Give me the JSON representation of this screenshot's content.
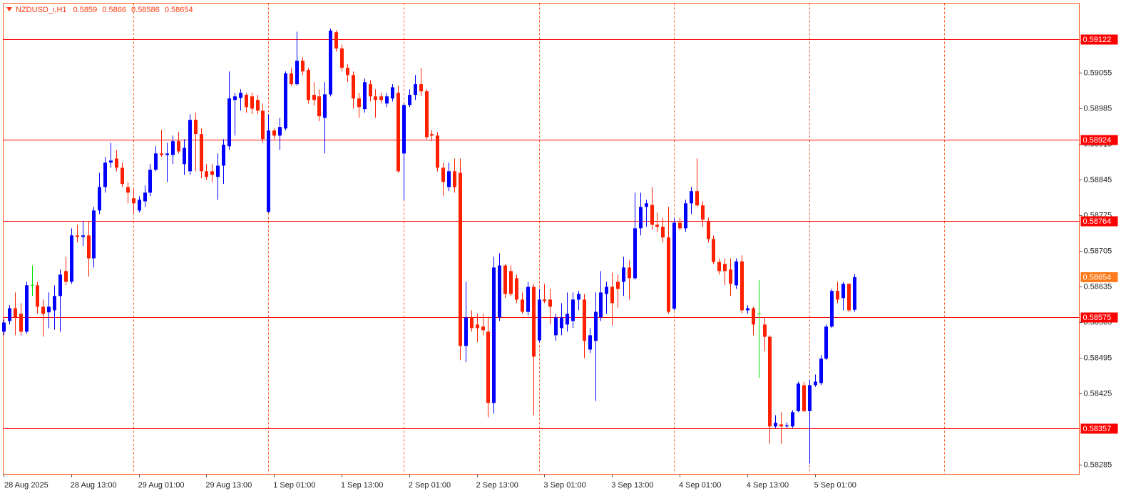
{
  "chart_data": {
    "type": "candlestick",
    "title": "NZDUSD_i,H1",
    "up_color": "#0000ff",
    "down_color": "#ff2000",
    "doji_color": "#00e000",
    "level_color": "#ff0000",
    "current_price_color": "#ff7a1a",
    "ylim": [
      0.58267,
      0.59192
    ],
    "yticks": [
      0.58285,
      0.58425,
      0.58495,
      0.58565,
      0.58635,
      0.58705,
      0.58775,
      0.58845,
      0.58915,
      0.58985,
      0.59055
    ],
    "levels": [
      0.59122,
      0.58924,
      0.58764,
      0.58575,
      0.58357
    ],
    "categories": [
      "28 Aug 2025",
      null,
      null,
      null,
      null,
      null,
      null,
      null,
      null,
      null,
      null,
      null,
      "28 Aug 13:00",
      null,
      null,
      null,
      null,
      null,
      null,
      null,
      null,
      null,
      null,
      null,
      "29 Aug 01:00",
      null,
      null,
      null,
      null,
      null,
      null,
      null,
      null,
      null,
      null,
      null,
      "29 Aug 13:00",
      null,
      null,
      null,
      null,
      null,
      null,
      null,
      null,
      null,
      null,
      null,
      "1 Sep 01:00",
      null,
      null,
      null,
      null,
      null,
      null,
      null,
      null,
      null,
      null,
      null,
      "1 Sep 13:00",
      null,
      null,
      null,
      null,
      null,
      null,
      null,
      null,
      null,
      null,
      null,
      "2 Sep 01:00",
      null,
      null,
      null,
      null,
      null,
      null,
      null,
      null,
      null,
      null,
      null,
      "2 Sep 13:00",
      null,
      null,
      null,
      null,
      null,
      null,
      null,
      null,
      null,
      null,
      null,
      "3 Sep 01:00",
      null,
      null,
      null,
      null,
      null,
      null,
      null,
      null,
      null,
      null,
      null,
      "3 Sep 13:00",
      null,
      null,
      null,
      null,
      null,
      null,
      null,
      null,
      null,
      null,
      null,
      "4 Sep 01:00",
      null,
      null,
      null,
      null,
      null,
      null,
      null,
      null,
      null,
      null,
      null,
      "4 Sep 13:00",
      null,
      null,
      null,
      null,
      null,
      null,
      null,
      null,
      null,
      null,
      null,
      "5 Sep 01:00",
      null,
      null,
      null,
      null,
      null,
      null,
      null
    ],
    "candles": [
      [
        0.58547,
        0.58571,
        0.5854,
        0.58565
      ],
      [
        0.58568,
        0.58599,
        0.58561,
        0.58593
      ],
      [
        0.58593,
        0.58624,
        0.5854,
        0.58575
      ],
      [
        0.58582,
        0.58603,
        0.5854,
        0.58547
      ],
      [
        0.58547,
        0.58645,
        0.58543,
        0.58638
      ],
      [
        0.58638,
        0.58677,
        0.58617,
        0.58638
      ],
      [
        0.58638,
        0.58645,
        0.58582,
        0.58596
      ],
      [
        0.58596,
        0.5861,
        0.58537,
        0.58582
      ],
      [
        0.58585,
        0.58624,
        0.58554,
        0.58596
      ],
      [
        0.58589,
        0.58638,
        0.58551,
        0.58617
      ],
      [
        0.58617,
        0.58669,
        0.58547,
        0.58659
      ],
      [
        0.58666,
        0.58694,
        0.58638,
        0.58645
      ],
      [
        0.58645,
        0.5875,
        0.58641,
        0.58736
      ],
      [
        0.58736,
        0.58757,
        0.58722,
        0.58733
      ],
      [
        0.58733,
        0.58764,
        0.58715,
        0.58736
      ],
      [
        0.58736,
        0.58764,
        0.58655,
        0.58691
      ],
      [
        0.58691,
        0.58792,
        0.58673,
        0.58785
      ],
      [
        0.58785,
        0.58859,
        0.58778,
        0.58831
      ],
      [
        0.58831,
        0.5889,
        0.5882,
        0.58879
      ],
      [
        0.58879,
        0.58918,
        0.58869,
        0.58883
      ],
      [
        0.58887,
        0.58904,
        0.58862,
        0.58869
      ],
      [
        0.58869,
        0.58879,
        0.58831,
        0.58837
      ],
      [
        0.58831,
        0.58841,
        0.58799,
        0.5882
      ],
      [
        0.58809,
        0.58827,
        0.58778,
        0.58799
      ],
      [
        0.58785,
        0.58813,
        0.58781,
        0.58806
      ],
      [
        0.58803,
        0.58834,
        0.58792,
        0.5882
      ],
      [
        0.5882,
        0.58876,
        0.58813,
        0.58865
      ],
      [
        0.58865,
        0.58911,
        0.58862,
        0.58897
      ],
      [
        0.58897,
        0.58943,
        0.5889,
        0.58894
      ],
      [
        0.58894,
        0.58918,
        0.58841,
        0.58897
      ],
      [
        0.58894,
        0.58932,
        0.58876,
        0.58921
      ],
      [
        0.58921,
        0.58939,
        0.58897,
        0.58901
      ],
      [
        0.58876,
        0.58925,
        0.58855,
        0.58908
      ],
      [
        0.58862,
        0.58974,
        0.58855,
        0.58963
      ],
      [
        0.58963,
        0.58977,
        0.58862,
        0.58935
      ],
      [
        0.58935,
        0.58946,
        0.58848,
        0.58862
      ],
      [
        0.58862,
        0.58876,
        0.58845,
        0.58851
      ],
      [
        0.58862,
        0.58876,
        0.58841,
        0.58855
      ],
      [
        0.58851,
        0.58897,
        0.58806,
        0.58873
      ],
      [
        0.58873,
        0.58925,
        0.58837,
        0.58914
      ],
      [
        0.58911,
        0.59058,
        0.58904,
        0.59005
      ],
      [
        0.59002,
        0.59016,
        0.58932,
        0.59009
      ],
      [
        0.59006,
        0.59023,
        0.58981,
        0.59016
      ],
      [
        0.59012,
        0.59016,
        0.58977,
        0.58988
      ],
      [
        0.59009,
        0.59016,
        0.58974,
        0.58985
      ],
      [
        0.59002,
        0.59012,
        0.58974,
        0.58981
      ],
      [
        0.58981,
        0.58995,
        0.58918,
        0.58925
      ],
      [
        0.58782,
        0.58974,
        0.58781,
        0.58942
      ],
      [
        0.58942,
        0.58946,
        0.58925,
        0.58932
      ],
      [
        0.58932,
        0.58967,
        0.58904,
        0.58949
      ],
      [
        0.58946,
        0.59058,
        0.58942,
        0.59054
      ],
      [
        0.59054,
        0.59065,
        0.5903,
        0.59033
      ],
      [
        0.59033,
        0.59136,
        0.5903,
        0.59079
      ],
      [
        0.59079,
        0.59086,
        0.59051,
        0.59058
      ],
      [
        0.59061,
        0.59065,
        0.58995,
        0.59002
      ],
      [
        0.59012,
        0.59037,
        0.58991,
        0.59002
      ],
      [
        0.59009,
        0.59023,
        0.5896,
        0.5897
      ],
      [
        0.58967,
        0.59037,
        0.58897,
        0.59013
      ],
      [
        0.59013,
        0.59142,
        0.59009,
        0.59138
      ],
      [
        0.59135,
        0.59139,
        0.59097,
        0.59103
      ],
      [
        0.59103,
        0.59111,
        0.59058,
        0.59065
      ],
      [
        0.59065,
        0.59072,
        0.59037,
        0.59051
      ],
      [
        0.59051,
        0.59058,
        0.58985,
        0.59005
      ],
      [
        0.59005,
        0.59016,
        0.58967,
        0.58988
      ],
      [
        0.58984,
        0.59044,
        0.58977,
        0.59037
      ],
      [
        0.59033,
        0.59041,
        0.58999,
        0.59009
      ],
      [
        0.59009,
        0.59023,
        0.58967,
        0.59002
      ],
      [
        0.59009,
        0.59016,
        0.58995,
        0.59002
      ],
      [
        0.58995,
        0.59016,
        0.58988,
        0.59009
      ],
      [
        0.59005,
        0.59033,
        0.58999,
        0.59027
      ],
      [
        0.59016,
        0.5903,
        0.58859,
        0.58862
      ],
      [
        0.58897,
        0.58995,
        0.58806,
        0.58992
      ],
      [
        0.58992,
        0.59023,
        0.58988,
        0.59012
      ],
      [
        0.59012,
        0.59051,
        0.59002,
        0.59033
      ],
      [
        0.59033,
        0.59065,
        0.59009,
        0.59019
      ],
      [
        0.59019,
        0.59023,
        0.58925,
        0.58929
      ],
      [
        0.58935,
        0.58943,
        0.58921,
        0.58932
      ],
      [
        0.58932,
        0.58939,
        0.58862,
        0.58869
      ],
      [
        0.58869,
        0.58879,
        0.58813,
        0.58841
      ],
      [
        0.58831,
        0.58879,
        0.58823,
        0.58862
      ],
      [
        0.58862,
        0.58887,
        0.5882,
        0.58831
      ],
      [
        0.58859,
        0.58887,
        0.58491,
        0.58519
      ],
      [
        0.58519,
        0.58645,
        0.58487,
        0.58575
      ],
      [
        0.58575,
        0.58589,
        0.58547,
        0.58554
      ],
      [
        0.58561,
        0.58582,
        0.58526,
        0.58554
      ],
      [
        0.58557,
        0.58582,
        0.5854,
        0.5855
      ],
      [
        0.58547,
        0.58575,
        0.58379,
        0.58407
      ],
      [
        0.58407,
        0.58694,
        0.58386,
        0.58673
      ],
      [
        0.58575,
        0.58701,
        0.58568,
        0.58677
      ],
      [
        0.58677,
        0.5868,
        0.58613,
        0.58621
      ],
      [
        0.58666,
        0.58677,
        0.58617,
        0.58621
      ],
      [
        0.58652,
        0.58659,
        0.58603,
        0.5861
      ],
      [
        0.5861,
        0.58624,
        0.58582,
        0.58586
      ],
      [
        0.58586,
        0.58645,
        0.58579,
        0.58635
      ],
      [
        0.58635,
        0.58641,
        0.58383,
        0.58498
      ],
      [
        0.5853,
        0.58631,
        0.58526,
        0.5861
      ],
      [
        0.5861,
        0.58641,
        0.58603,
        0.58607
      ],
      [
        0.5861,
        0.58631,
        0.58561,
        0.58596
      ],
      [
        0.5854,
        0.58582,
        0.58529,
        0.58575
      ],
      [
        0.58554,
        0.58603,
        0.5854,
        0.58575
      ],
      [
        0.58561,
        0.58624,
        0.58547,
        0.58582
      ],
      [
        0.58568,
        0.58624,
        0.58554,
        0.5861
      ],
      [
        0.5861,
        0.58627,
        0.58589,
        0.58621
      ],
      [
        0.5861,
        0.58621,
        0.58495,
        0.58529
      ],
      [
        0.58512,
        0.58554,
        0.58505,
        0.5854
      ],
      [
        0.58529,
        0.58624,
        0.58411,
        0.58586
      ],
      [
        0.58575,
        0.58666,
        0.58568,
        0.58624
      ],
      [
        0.58621,
        0.58645,
        0.58582,
        0.58635
      ],
      [
        0.58635,
        0.58663,
        0.58559,
        0.58603
      ],
      [
        0.58645,
        0.58659,
        0.58593,
        0.58631
      ],
      [
        0.58645,
        0.58694,
        0.58617,
        0.58673
      ],
      [
        0.58673,
        0.58687,
        0.5861,
        0.58652
      ],
      [
        0.58652,
        0.5882,
        0.58649,
        0.5875
      ],
      [
        0.5875,
        0.5882,
        0.58736,
        0.58792
      ],
      [
        0.58792,
        0.58806,
        0.58753,
        0.58799
      ],
      [
        0.58796,
        0.58831,
        0.58747,
        0.58757
      ],
      [
        0.58757,
        0.58781,
        0.58743,
        0.58753
      ],
      [
        0.58753,
        0.58771,
        0.58722,
        0.58732
      ],
      [
        0.58732,
        0.58792,
        0.58582,
        0.58586
      ],
      [
        0.58592,
        0.58771,
        0.58589,
        0.58761
      ],
      [
        0.58761,
        0.58771,
        0.58746,
        0.5875
      ],
      [
        0.5875,
        0.58806,
        0.58743,
        0.58799
      ],
      [
        0.58799,
        0.58831,
        0.58778,
        0.58823
      ],
      [
        0.58823,
        0.58887,
        0.58792,
        0.58795
      ],
      [
        0.58795,
        0.58803,
        0.58753,
        0.58767
      ],
      [
        0.58764,
        0.58771,
        0.58722,
        0.58729
      ],
      [
        0.58729,
        0.58736,
        0.5868,
        0.58684
      ],
      [
        0.58684,
        0.58691,
        0.58659,
        0.58666
      ],
      [
        0.5868,
        0.58691,
        0.58638,
        0.58666
      ],
      [
        0.58669,
        0.58691,
        0.58617,
        0.58641
      ],
      [
        0.58638,
        0.58691,
        0.58631,
        0.58685
      ],
      [
        0.58685,
        0.58697,
        0.58582,
        0.58589
      ],
      [
        0.58589,
        0.58599,
        0.58582,
        0.58593
      ],
      [
        0.58593,
        0.58596,
        0.5854,
        0.58561
      ],
      [
        0.58582,
        0.58648,
        0.58456,
        0.58582
      ],
      [
        0.58561,
        0.58575,
        0.58509,
        0.58537
      ],
      [
        0.58537,
        0.5854,
        0.58327,
        0.58361
      ],
      [
        0.58361,
        0.58383,
        0.58358,
        0.58368
      ],
      [
        0.58365,
        0.58389,
        0.58327,
        0.58361
      ],
      [
        0.58361,
        0.58369,
        0.58358,
        0.58363
      ],
      [
        0.58361,
        0.58393,
        0.58358,
        0.58389
      ],
      [
        0.58391,
        0.58449,
        0.58389,
        0.58445
      ],
      [
        0.58442,
        0.58449,
        0.58389,
        0.58391
      ],
      [
        0.58391,
        0.58453,
        0.58288,
        0.58442
      ],
      [
        0.58442,
        0.58463,
        0.58439,
        0.58449
      ],
      [
        0.58446,
        0.58501,
        0.58442,
        0.58494
      ],
      [
        0.58494,
        0.58561,
        0.58491,
        0.58557
      ],
      [
        0.58557,
        0.58631,
        0.58554,
        0.58627
      ],
      [
        0.58627,
        0.58645,
        0.58603,
        0.5861
      ],
      [
        0.58613,
        0.58645,
        0.58589,
        0.58641
      ],
      [
        0.58641,
        0.58642,
        0.58585,
        0.58589
      ],
      [
        0.5859,
        0.5866,
        0.58586,
        0.58654
      ]
    ]
  }
}
